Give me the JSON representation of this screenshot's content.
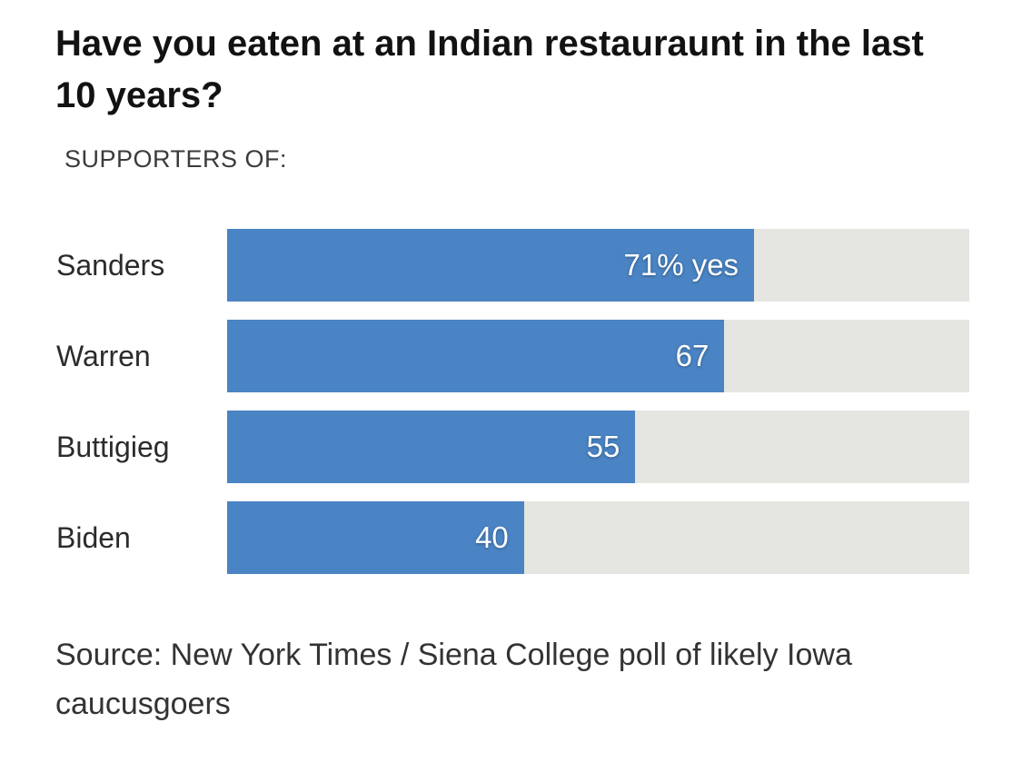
{
  "title": "Have you eaten at an Indian restauraunt in the last 10 years?",
  "subtitle": "SUPPORTERS OF:",
  "source": "Source: New York Times / Siena College poll of likely Iowa caucusgoers",
  "colors": {
    "bar_fill": "#4a84c4",
    "bar_track": "#e5e5e1",
    "title_text": "#121212",
    "label_text": "#2b2b2b",
    "value_text": "#ffffff"
  },
  "chart_data": {
    "type": "bar",
    "orientation": "horizontal",
    "title": "Have you eaten at an Indian restauraunt in the last 10 years?",
    "subtitle": "SUPPORTERS OF:",
    "categories": [
      "Sanders",
      "Warren",
      "Buttigieg",
      "Biden"
    ],
    "values": [
      71,
      67,
      55,
      40
    ],
    "value_labels": [
      "71% yes",
      "67",
      "55",
      "40"
    ],
    "unit": "%",
    "xlim": [
      0,
      100
    ],
    "grid": false,
    "legend": false,
    "source": "Source: New York Times / Siena College poll of likely Iowa caucusgoers"
  }
}
